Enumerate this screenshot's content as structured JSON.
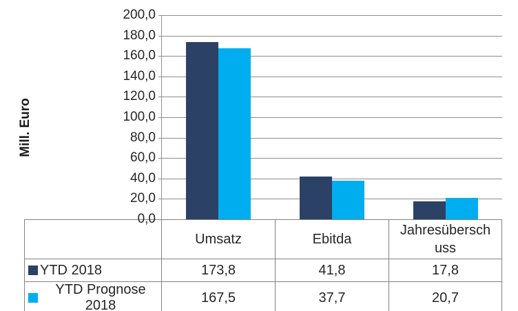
{
  "chart_data": {
    "type": "bar",
    "title": "",
    "ylabel": "Mill. Euro",
    "xlabel": "",
    "ylim": [
      0,
      200
    ],
    "y_tick_interval": 20,
    "y_ticks_top_to_bottom": [
      "200,0",
      "180,0",
      "160,0",
      "140,0",
      "120,0",
      "100,0",
      "80,0",
      "60,0",
      "40,0",
      "20,0",
      "0,0"
    ],
    "grid": true,
    "legend_position": "table-rows-left",
    "categories": [
      "Umsatz",
      "Ebitda",
      "Jahresüberschuss"
    ],
    "categories_display": [
      "Umsatz",
      "Ebitda",
      "Jahresübersch\nuss"
    ],
    "series": [
      {
        "name": "YTD 2018",
        "color": "#2B4166",
        "values": [
          173.8,
          41.8,
          17.8
        ],
        "values_display": [
          "173,8",
          "41,8",
          "17,8"
        ]
      },
      {
        "name": "YTD Prognose 2018",
        "color": "#00AEEF",
        "values": [
          167.5,
          37.7,
          20.7
        ],
        "values_display": [
          "167,5",
          "37,7",
          "20,7"
        ]
      }
    ]
  },
  "colors": {
    "series_ytd_2018": "#2B4166",
    "series_ytd_prognose_2018": "#00AEEF",
    "gridline": "#8C8C8C",
    "table_border": "#808080",
    "text": "#262626",
    "background": "#FFFFFF"
  }
}
